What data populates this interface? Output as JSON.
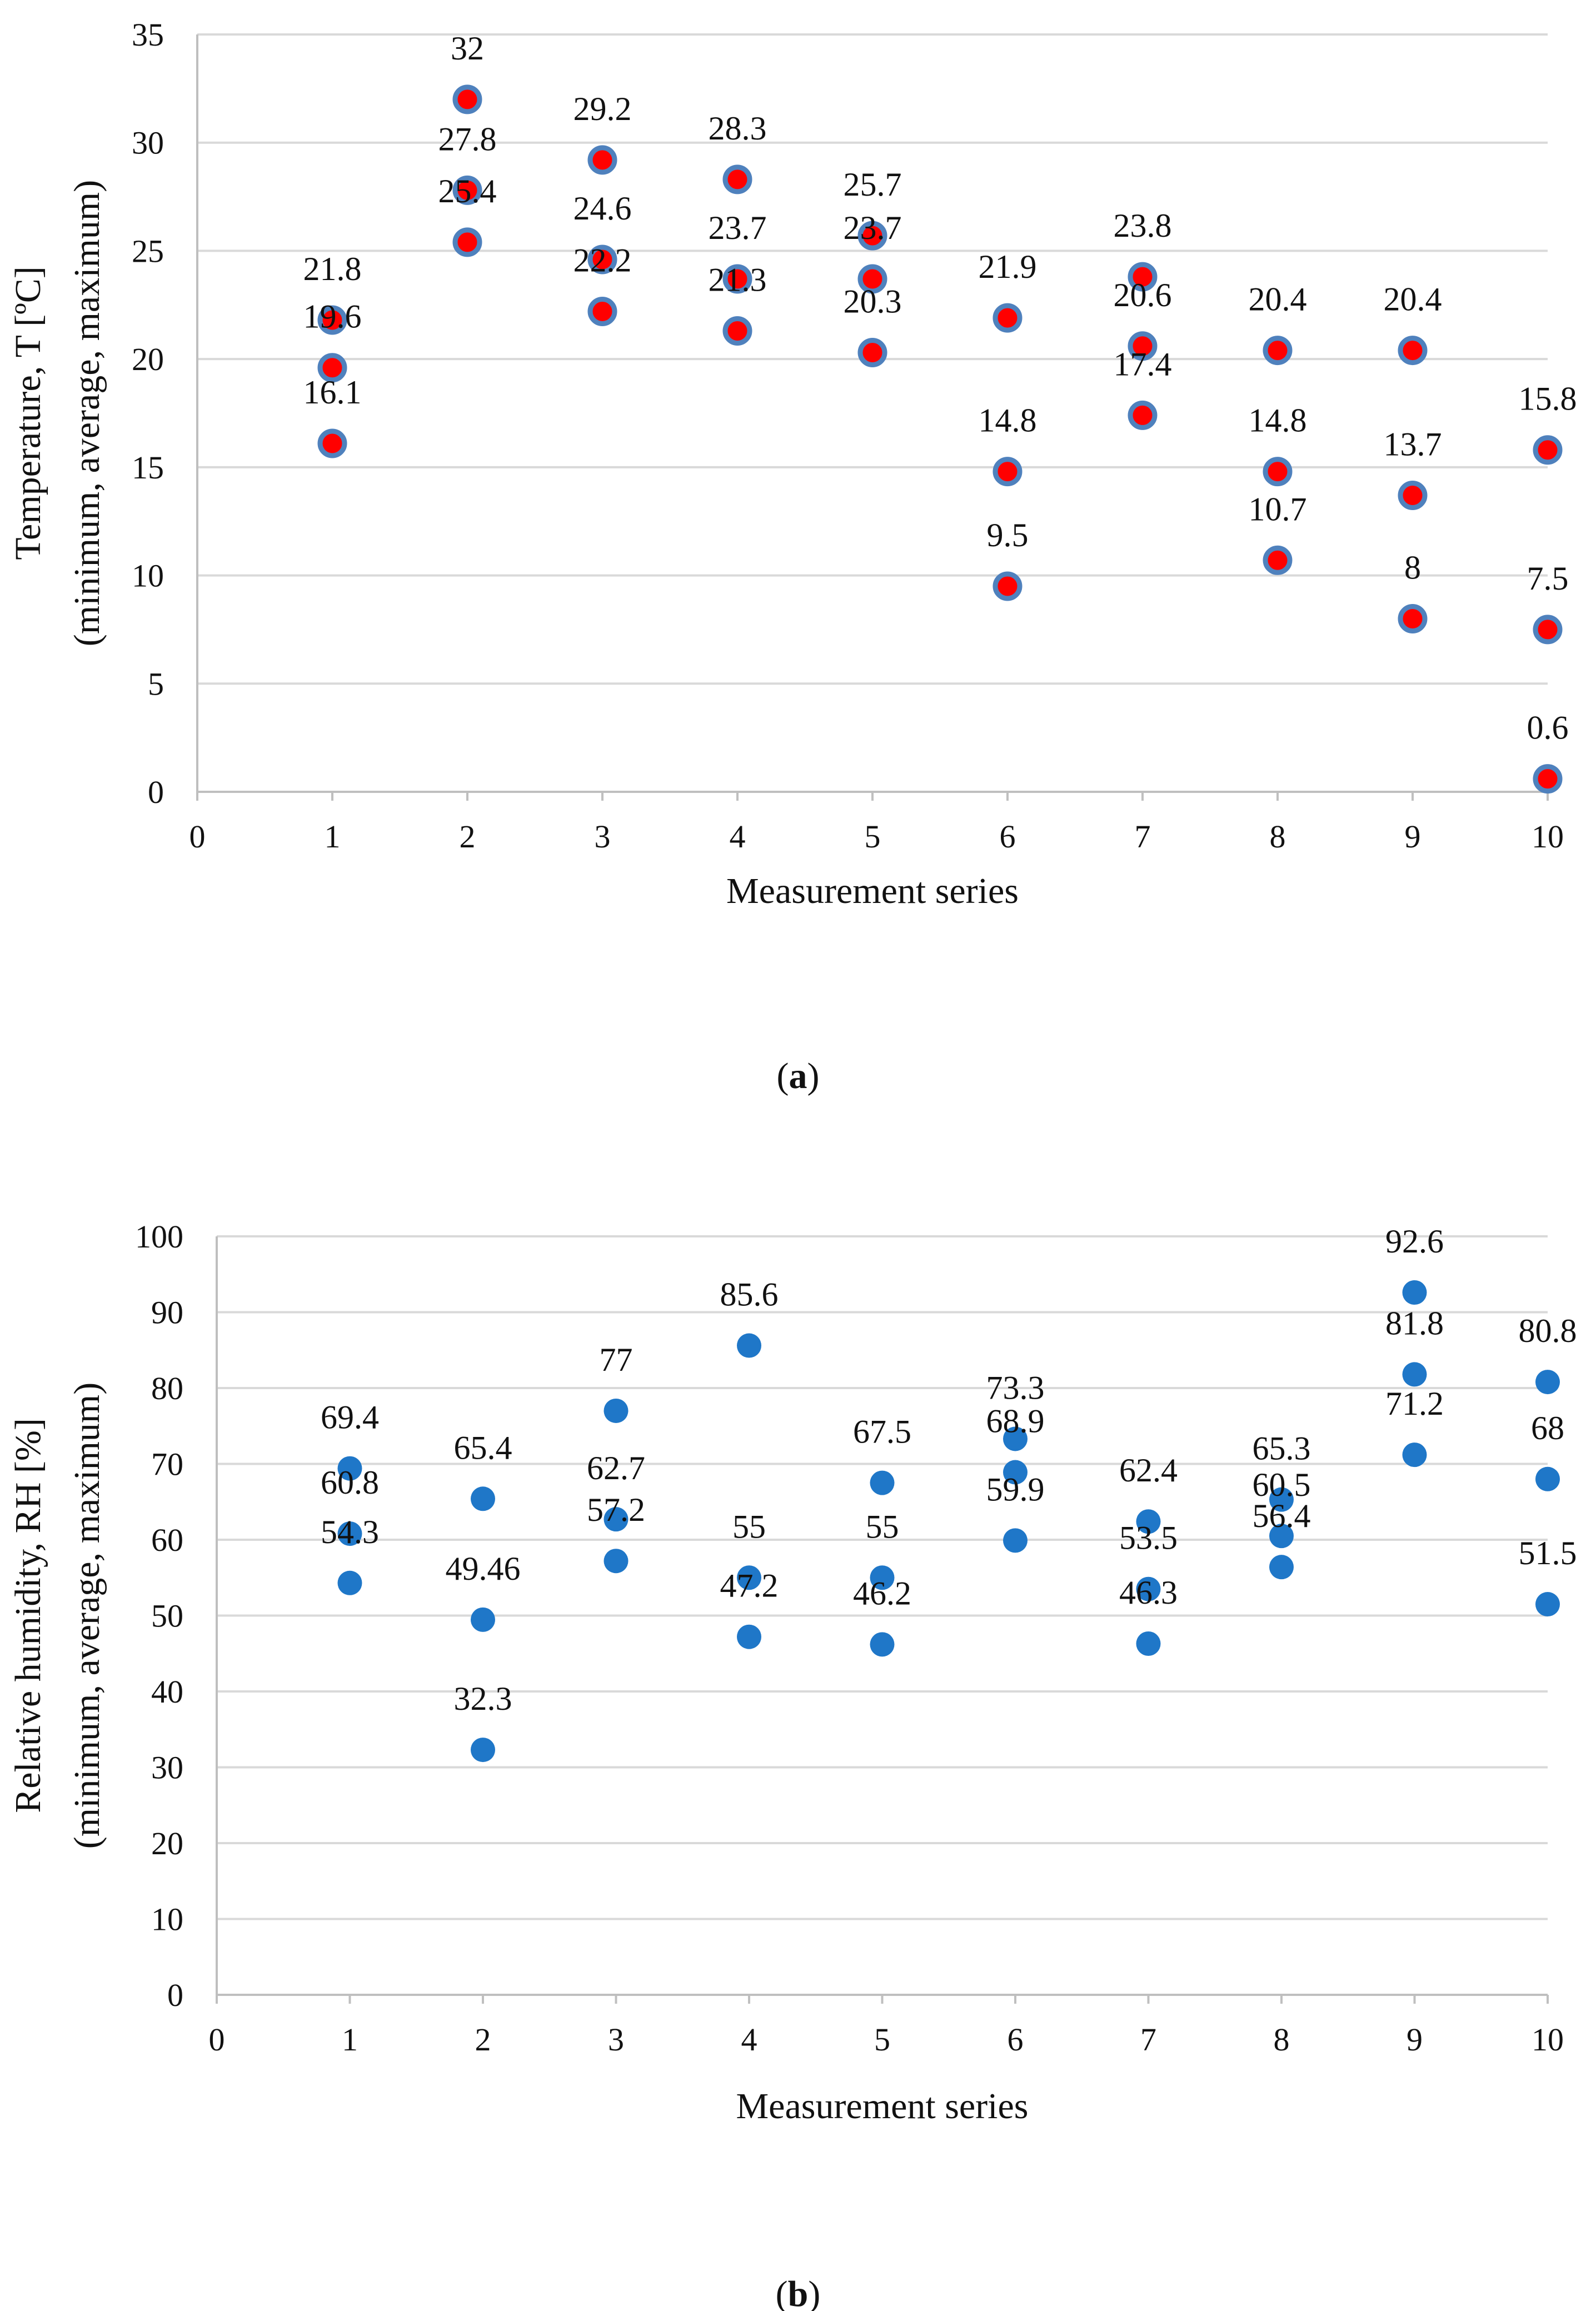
{
  "chart_data": [
    {
      "type": "scatter",
      "panel_label": "a",
      "title": "",
      "xlabel": "Measurement series",
      "ylabel_line1": "Temperature, T [ºC]",
      "ylabel_line2": "(minimum, average, maximum)",
      "xlim": [
        0,
        10
      ],
      "ylim": [
        0,
        35
      ],
      "x_ticks": [
        "0",
        "1",
        "2",
        "3",
        "4",
        "5",
        "6",
        "7",
        "8",
        "9",
        "10"
      ],
      "y_ticks": [
        "0",
        "5",
        "10",
        "15",
        "20",
        "25",
        "30",
        "35"
      ],
      "grid": "horizontal",
      "marker_fill": "#ff0000",
      "marker_edge": "#4f81bd",
      "series": [
        {
          "name": "maximum",
          "x": [
            1,
            2,
            3,
            4,
            5,
            6,
            7,
            8,
            9,
            10
          ],
          "values": [
            21.8,
            32,
            29.2,
            28.3,
            25.7,
            21.9,
            23.8,
            20.4,
            20.4,
            15.8
          ]
        },
        {
          "name": "average",
          "x": [
            1,
            2,
            3,
            4,
            5,
            6,
            7,
            8,
            9,
            10
          ],
          "values": [
            19.6,
            27.8,
            24.6,
            23.7,
            23.7,
            14.8,
            20.6,
            14.8,
            13.7,
            7.5
          ]
        },
        {
          "name": "minimum",
          "x": [
            1,
            2,
            3,
            4,
            5,
            6,
            7,
            8,
            9,
            10
          ],
          "values": [
            16.1,
            25.4,
            22.2,
            21.3,
            20.3,
            9.5,
            17.4,
            10.7,
            8,
            0.6
          ]
        }
      ]
    },
    {
      "type": "scatter",
      "panel_label": "b",
      "title": "",
      "xlabel": "Measurement series",
      "ylabel_line1": "Relative humidity, RH [%]",
      "ylabel_line2": "(minimum, average, maximum)",
      "xlim": [
        0,
        10
      ],
      "ylim": [
        0,
        100
      ],
      "x_ticks": [
        "0",
        "1",
        "2",
        "3",
        "4",
        "5",
        "6",
        "7",
        "8",
        "9",
        "10"
      ],
      "y_ticks": [
        "0",
        "10",
        "20",
        "30",
        "40",
        "50",
        "60",
        "70",
        "80",
        "90",
        "100"
      ],
      "grid": "horizontal",
      "marker_fill": "#1f77c8",
      "marker_edge": "#1f77c8",
      "series": [
        {
          "name": "maximum",
          "x": [
            1,
            2,
            3,
            4,
            5,
            6,
            7,
            8,
            9,
            10
          ],
          "values": [
            69.4,
            65.4,
            77,
            85.6,
            67.5,
            73.3,
            62.4,
            65.3,
            92.6,
            80.8
          ]
        },
        {
          "name": "average",
          "x": [
            1,
            2,
            3,
            4,
            5,
            6,
            7,
            8,
            9,
            10
          ],
          "values": [
            60.8,
            49.46,
            62.7,
            55,
            55,
            68.9,
            53.5,
            60.5,
            81.8,
            68
          ]
        },
        {
          "name": "minimum",
          "x": [
            1,
            2,
            3,
            4,
            5,
            6,
            7,
            8,
            9,
            10
          ],
          "values": [
            54.3,
            32.3,
            57.2,
            47.2,
            46.2,
            59.9,
            46.3,
            56.4,
            71.2,
            51.5
          ]
        }
      ]
    }
  ]
}
